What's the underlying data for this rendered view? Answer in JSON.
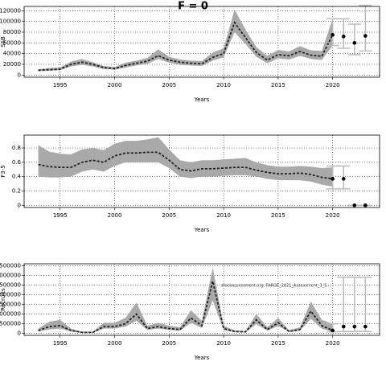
{
  "chart_data": [
    {
      "type": "band-line",
      "title": "F = 0",
      "x_label": "Years",
      "y_label": "SSB",
      "x": [
        1993,
        1994,
        1995,
        1996,
        1997,
        1998,
        1999,
        2000,
        2001,
        2002,
        2003,
        2004,
        2005,
        2006,
        2007,
        2008,
        2009,
        2010,
        2011,
        2012,
        2013,
        2014,
        2015,
        2016,
        2017,
        2018,
        2019,
        2020
      ],
      "series": [
        {
          "name": "estimate",
          "color": "#222222",
          "values": [
            9000,
            10000,
            11000,
            20000,
            24000,
            20000,
            14000,
            12000,
            18000,
            22000,
            26000,
            36000,
            28000,
            24000,
            22000,
            21000,
            33000,
            40000,
            98000,
            70000,
            42000,
            28000,
            38000,
            36000,
            44000,
            37000,
            35000,
            75000
          ]
        },
        {
          "name": "lower",
          "color": "#a9a9a9",
          "values": [
            7000,
            8000,
            9000,
            16000,
            19000,
            16000,
            11000,
            10000,
            14000,
            18000,
            21000,
            30000,
            23000,
            19000,
            18000,
            17000,
            27000,
            33000,
            80000,
            58000,
            34000,
            22000,
            31000,
            29000,
            36000,
            30000,
            28000,
            55000
          ]
        },
        {
          "name": "upper",
          "color": "#a9a9a9",
          "values": [
            11000,
            13000,
            14000,
            25000,
            30000,
            24000,
            17000,
            15000,
            23000,
            27000,
            32000,
            48000,
            34000,
            29000,
            27000,
            26000,
            42000,
            50000,
            122000,
            85000,
            52000,
            36000,
            47000,
            44000,
            54000,
            46000,
            45000,
            105000
          ]
        }
      ],
      "projection": {
        "x": [
          2020,
          2021,
          2022,
          2023
        ],
        "values": [
          75000,
          72000,
          60000,
          73000
        ],
        "lower": [
          55000,
          50000,
          38000,
          45000
        ],
        "upper": [
          105000,
          105000,
          95000,
          130000
        ]
      },
      "xlim": [
        1991.7,
        2024.3
      ],
      "xticks": [
        1995,
        2000,
        2005,
        2010,
        2015,
        2020
      ],
      "ylim": [
        -4000,
        128000
      ],
      "yticks": [
        0,
        20000,
        40000,
        60000,
        80000,
        100000,
        120000
      ],
      "grid": true
    },
    {
      "type": "band-line",
      "x_label": "Years",
      "y_label": "F3-5",
      "x": [
        1993,
        1994,
        1995,
        1996,
        1997,
        1998,
        1999,
        2000,
        2001,
        2002,
        2003,
        2004,
        2005,
        2006,
        2007,
        2008,
        2009,
        2010,
        2011,
        2012,
        2013,
        2014,
        2015,
        2016,
        2017,
        2018,
        2019,
        2020
      ],
      "series": [
        {
          "name": "estimate",
          "color": "#222222",
          "values": [
            0.57,
            0.54,
            0.53,
            0.53,
            0.6,
            0.63,
            0.6,
            0.69,
            0.73,
            0.73,
            0.74,
            0.74,
            0.63,
            0.5,
            0.48,
            0.51,
            0.51,
            0.52,
            0.53,
            0.53,
            0.49,
            0.46,
            0.44,
            0.44,
            0.45,
            0.43,
            0.39,
            0.37
          ]
        },
        {
          "name": "lower",
          "color": "#a9a9a9",
          "values": [
            0.4,
            0.39,
            0.39,
            0.4,
            0.47,
            0.5,
            0.47,
            0.55,
            0.6,
            0.6,
            0.6,
            0.6,
            0.52,
            0.4,
            0.38,
            0.4,
            0.4,
            0.41,
            0.42,
            0.42,
            0.4,
            0.37,
            0.35,
            0.35,
            0.35,
            0.33,
            0.29,
            0.26
          ]
        },
        {
          "name": "upper",
          "color": "#a9a9a9",
          "values": [
            0.84,
            0.75,
            0.72,
            0.71,
            0.78,
            0.8,
            0.77,
            0.86,
            0.9,
            0.9,
            0.92,
            0.95,
            0.78,
            0.63,
            0.6,
            0.63,
            0.63,
            0.64,
            0.65,
            0.66,
            0.6,
            0.56,
            0.54,
            0.54,
            0.55,
            0.54,
            0.52,
            0.53
          ]
        }
      ],
      "projection": {
        "x": [
          2020,
          2021,
          2022,
          2023
        ],
        "values": [
          0.37,
          0.37,
          0,
          0
        ],
        "lower": [
          0.23,
          0.23,
          0,
          0
        ],
        "upper": [
          0.55,
          0.55,
          0,
          0
        ]
      },
      "xlim": [
        1991.7,
        2024.3
      ],
      "xticks": [
        1995,
        2000,
        2005,
        2010,
        2015,
        2020
      ],
      "ylim": [
        -0.03,
        0.98
      ],
      "yticks": [
        0.0,
        0.2,
        0.4,
        0.6,
        0.8
      ],
      "grid": true
    },
    {
      "type": "band-line",
      "x_label": "Years",
      "y_label": "Recruits",
      "annotation": "stockassessment.org, FAROE_2021_Assessment_3_5...",
      "x": [
        1993,
        1994,
        1995,
        1996,
        1997,
        1998,
        1999,
        2000,
        2001,
        2002,
        2003,
        2004,
        2005,
        2006,
        2007,
        2008,
        2009,
        2010,
        2011,
        2012,
        2013,
        2014,
        2015,
        2016,
        2017,
        2018,
        2019,
        2020
      ],
      "series": [
        {
          "name": "estimate",
          "color": "#222222",
          "values": [
            150000,
            350000,
            400000,
            150000,
            50000,
            50000,
            350000,
            350000,
            500000,
            1000000,
            250000,
            350000,
            250000,
            200000,
            800000,
            400000,
            2700000,
            250000,
            100000,
            80000,
            700000,
            200000,
            550000,
            100000,
            200000,
            1150000,
            400000,
            150000
          ]
        },
        {
          "name": "lower",
          "color": "#a9a9a9",
          "values": [
            100000,
            200000,
            250000,
            100000,
            30000,
            30000,
            250000,
            250000,
            350000,
            650000,
            180000,
            250000,
            180000,
            140000,
            550000,
            280000,
            1700000,
            170000,
            60000,
            50000,
            480000,
            140000,
            380000,
            70000,
            140000,
            750000,
            250000,
            80000
          ]
        },
        {
          "name": "upper",
          "color": "#a9a9a9",
          "values": [
            250000,
            600000,
            700000,
            250000,
            90000,
            90000,
            550000,
            550000,
            800000,
            1600000,
            400000,
            550000,
            400000,
            320000,
            1200000,
            650000,
            3400000,
            400000,
            160000,
            120000,
            1000000,
            320000,
            800000,
            160000,
            320000,
            1650000,
            700000,
            500000
          ]
        }
      ],
      "projection": {
        "x": [
          2020,
          2021,
          2022,
          2023
        ],
        "values": [
          150000,
          350000,
          350000,
          350000
        ],
        "lower": [
          80000,
          100000,
          100000,
          100000
        ],
        "upper": [
          500000,
          2900000,
          2900000,
          2900000
        ]
      },
      "xlim": [
        1991.7,
        2024.3
      ],
      "xticks": [
        1995,
        2000,
        2005,
        2010,
        2015,
        2020
      ],
      "ylim": [
        -100000,
        3600000
      ],
      "yticks": [
        0,
        500000,
        1000000,
        1500000,
        2000000,
        2500000,
        3000000,
        3500000
      ],
      "grid": true
    }
  ]
}
